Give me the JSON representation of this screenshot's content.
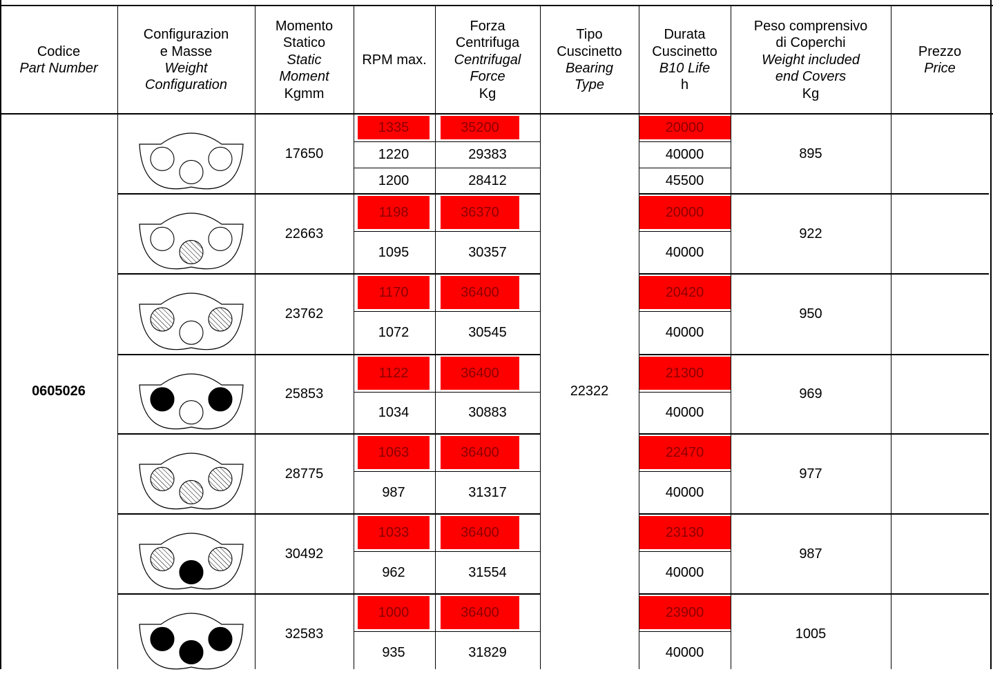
{
  "table": {
    "headers": {
      "codice": [
        "Codice",
        "Part Number"
      ],
      "config": [
        "Configurazion",
        "e  Masse",
        "Weight",
        "Configuration"
      ],
      "momento": [
        "Momento",
        "Statico",
        "Static",
        "Moment",
        "Kgmm"
      ],
      "rpm": [
        "RPM max."
      ],
      "forza": [
        "Forza",
        "Centrifuga",
        "Centrifugal",
        "Force",
        "Kg"
      ],
      "tipo": [
        "Tipo",
        "Cuscinetto",
        "Bearing",
        "Type"
      ],
      "durata": [
        "Durata",
        "Cuscinetto",
        "B10 Life",
        "h"
      ],
      "peso": [
        "Peso comprensivo",
        "di Coperchi",
        "Weight included",
        "end Covers",
        "Kg"
      ],
      "prezzo": [
        "Prezzo",
        "Price"
      ]
    },
    "part_number": "0605026",
    "bearing_type": "22322",
    "highlight_color": "#ff0000",
    "highlight_text_color": "#8b0000",
    "rows": [
      {
        "config": "1: three empty masses",
        "moment": "17650",
        "weight": "895",
        "price": "",
        "sub": [
          {
            "rpm": "1335",
            "force": "35200",
            "life": "20000",
            "highlight": true
          },
          {
            "rpm": "1220",
            "force": "29383",
            "life": "40000",
            "highlight": false
          },
          {
            "rpm": "1200",
            "force": "28412",
            "life": "45500",
            "highlight": false
          }
        ]
      },
      {
        "config": "2: center mass hatched",
        "moment": "22663",
        "weight": "922",
        "price": "",
        "sub": [
          {
            "rpm": "1198",
            "force": "36370",
            "life": "20000",
            "highlight": true
          },
          {
            "rpm": "1095",
            "force": "30357",
            "life": "40000",
            "highlight": false
          }
        ]
      },
      {
        "config": "3: side masses hatched",
        "moment": "23762",
        "weight": "950",
        "price": "",
        "sub": [
          {
            "rpm": "1170",
            "force": "36400",
            "life": "20420",
            "highlight": true
          },
          {
            "rpm": "1072",
            "force": "30545",
            "life": "40000",
            "highlight": false
          }
        ]
      },
      {
        "config": "4: side masses solid",
        "moment": "25853",
        "weight": "969",
        "price": "",
        "sub": [
          {
            "rpm": "1122",
            "force": "36400",
            "life": "21300",
            "highlight": true
          },
          {
            "rpm": "1034",
            "force": "30883",
            "life": "40000",
            "highlight": false
          }
        ]
      },
      {
        "config": "5: all masses hatched",
        "moment": "28775",
        "weight": "977",
        "price": "",
        "sub": [
          {
            "rpm": "1063",
            "force": "36400",
            "life": "22470",
            "highlight": true
          },
          {
            "rpm": "987",
            "force": "31317",
            "life": "40000",
            "highlight": false
          }
        ]
      },
      {
        "config": "6: sides hatched, center solid",
        "moment": "30492",
        "weight": "987",
        "price": "",
        "sub": [
          {
            "rpm": "1033",
            "force": "36400",
            "life": "23130",
            "highlight": true
          },
          {
            "rpm": "962",
            "force": "31554",
            "life": "40000",
            "highlight": false
          }
        ]
      },
      {
        "config": "7: all masses solid",
        "moment": "32583",
        "weight": "1005",
        "price": "",
        "sub": [
          {
            "rpm": "1000",
            "force": "36400",
            "life": "23900",
            "highlight": true
          },
          {
            "rpm": "935",
            "force": "31829",
            "life": "40000",
            "highlight": false
          }
        ]
      }
    ]
  }
}
